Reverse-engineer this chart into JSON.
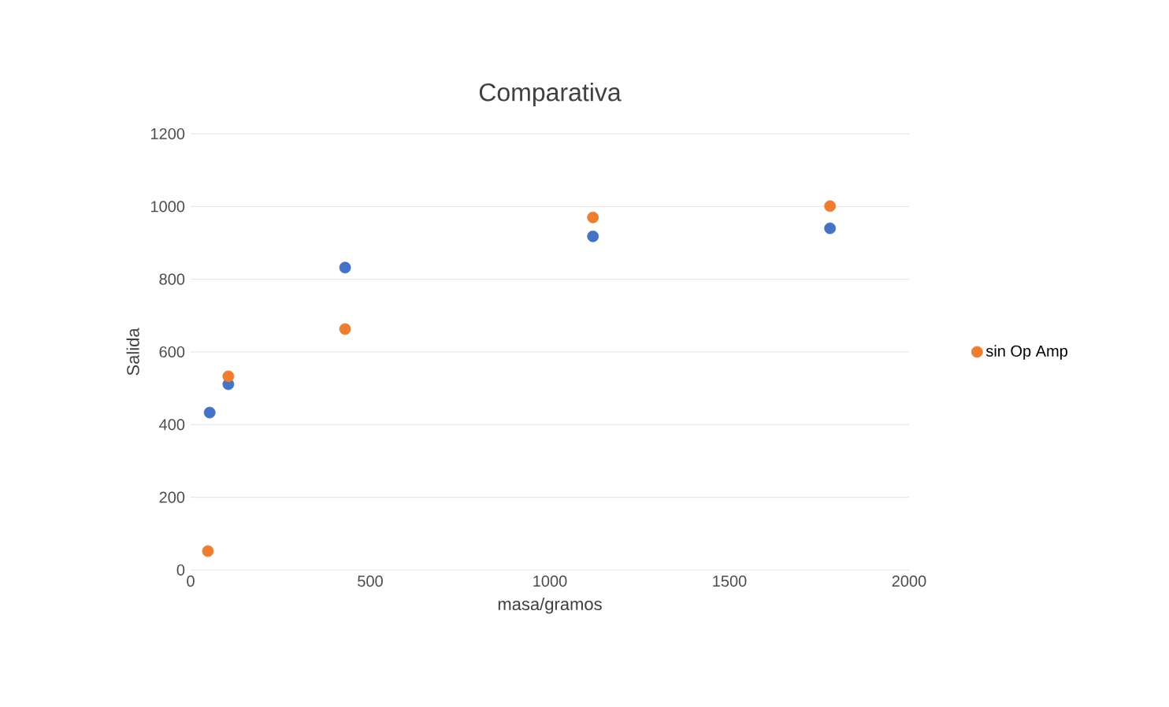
{
  "chart_data": {
    "type": "scatter",
    "title": "Comparativa",
    "xlabel": "masa/gramos",
    "ylabel": "Salida",
    "xlim": [
      0,
      2000
    ],
    "xticks": [
      0,
      500,
      1000,
      1500,
      2000
    ],
    "ylim": [
      0,
      1200
    ],
    "yticks": [
      0,
      200,
      400,
      600,
      800,
      1000,
      1200
    ],
    "grid": "y",
    "legend": "right",
    "marker": "circle",
    "series": [
      {
        "color": "#4472c4",
        "x": [
          53,
          105,
          430,
          1120,
          1780
        ],
        "values": [
          433,
          511,
          832,
          918,
          940
        ]
      },
      {
        "name": "sin Op Amp",
        "color": "#ed7d31",
        "x": [
          48,
          105,
          430,
          1120,
          1780
        ],
        "values": [
          52,
          533,
          663,
          970,
          1001
        ]
      }
    ]
  }
}
